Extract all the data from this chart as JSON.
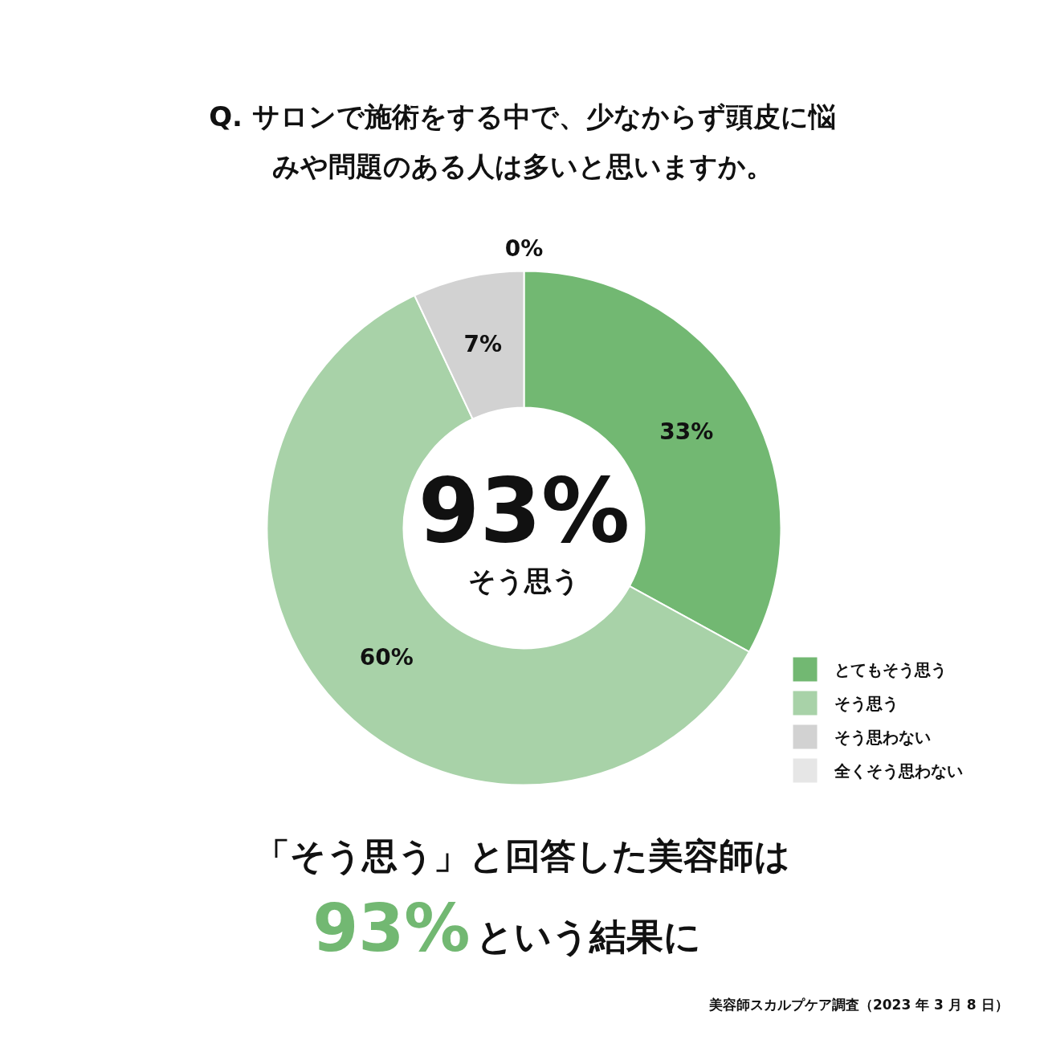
{
  "chart_data": {
    "type": "donut",
    "title": "Q. サロンで施術をする中で、少なからず頭皮に悩みや問題のある人は多いと思いますか。",
    "categories": [
      "とてもそう思う",
      "そう思う",
      "そう思わない",
      "全くそう思わない"
    ],
    "values": [
      33,
      60,
      7,
      0
    ],
    "colors": [
      "#72b872",
      "#a8d2a8",
      "#d2d2d2",
      "#e6e6e6"
    ],
    "value_labels": [
      "33%",
      "60%",
      "7%",
      "0%"
    ],
    "legend": "bottom right",
    "annotations": [
      "93%",
      "そう思う",
      "「そう思う」と回答した美容師は",
      "93%",
      "という結果に",
      "美容師スカルプケア調査（2023 年 3 月 8 日）"
    ]
  }
}
